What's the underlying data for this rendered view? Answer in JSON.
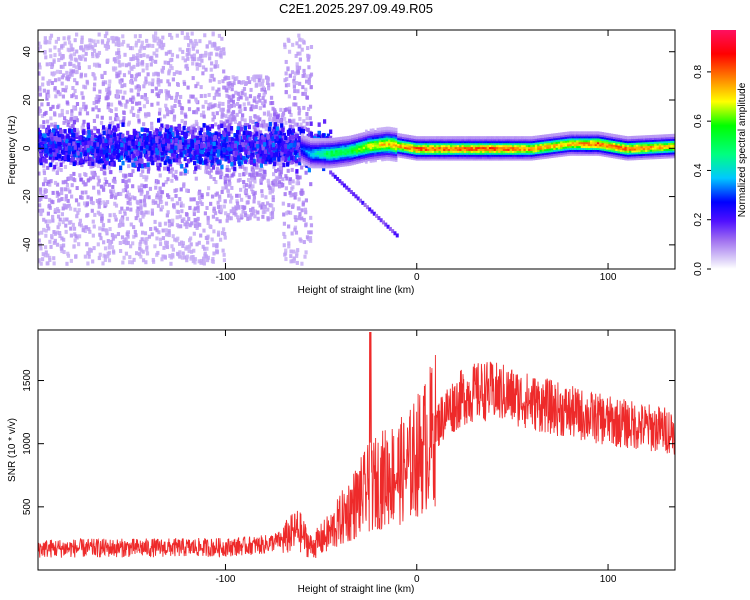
{
  "figure": {
    "title": "C2E1.2025.297.09.49.R05"
  },
  "colors": {
    "snr_line": "#ee2a2a",
    "colormap": [
      "#dcd0f8",
      "#a070f0",
      "#5010ff",
      "#0000ff",
      "#00c8ff",
      "#00ff80",
      "#00ff00",
      "#ffff00",
      "#ff8000",
      "#ff0000",
      "#ff1060"
    ]
  },
  "chart_data": [
    {
      "type": "heatmap",
      "title": "C2E1.2025.297.09.49.R05",
      "xlabel": "Height of straight line (km)",
      "ylabel": "Frequency (Hz)",
      "xlim": [
        -198,
        135
      ],
      "ylim": [
        -50,
        49
      ],
      "xticks": [
        -100,
        0,
        100
      ],
      "xtick_labels": [
        "-100",
        "0",
        "100"
      ],
      "yticks": [
        -40,
        -20,
        0,
        20,
        40
      ],
      "ytick_labels": [
        "-40",
        "-20",
        "0",
        "20",
        "40"
      ],
      "colorbar": {
        "label": "Normalized spectral amplitude",
        "range": [
          0,
          0.97
        ],
        "ticks": [
          0.0,
          0.2,
          0.4,
          0.6,
          0.8
        ],
        "tick_labels": [
          "0.0",
          "0.2",
          "0.4",
          "0.6",
          "0.8"
        ]
      },
      "ridge": {
        "description": "dominant frequency ridge (x km, Hz, amplitude)",
        "points": [
          {
            "x": -198,
            "f": 2,
            "a": 0.15
          },
          {
            "x": -160,
            "f": 1,
            "a": 0.18
          },
          {
            "x": -120,
            "f": 2,
            "a": 0.16
          },
          {
            "x": -90,
            "f": 3,
            "a": 0.2
          },
          {
            "x": -75,
            "f": 1,
            "a": 0.3
          },
          {
            "x": -65,
            "f": 2,
            "a": 0.25
          },
          {
            "x": -55,
            "f": -2,
            "a": 0.45
          },
          {
            "x": -45,
            "f": -2,
            "a": 0.6
          },
          {
            "x": -35,
            "f": -1,
            "a": 0.6
          },
          {
            "x": -25,
            "f": 1,
            "a": 0.75
          },
          {
            "x": -15,
            "f": 2,
            "a": 0.8
          },
          {
            "x": 0,
            "f": 0,
            "a": 0.9
          },
          {
            "x": 20,
            "f": 0,
            "a": 0.88
          },
          {
            "x": 40,
            "f": 0,
            "a": 0.92
          },
          {
            "x": 60,
            "f": 0,
            "a": 0.85
          },
          {
            "x": 80,
            "f": 2,
            "a": 0.82
          },
          {
            "x": 95,
            "f": 2,
            "a": 0.9
          },
          {
            "x": 110,
            "f": 0,
            "a": 0.88
          },
          {
            "x": 135,
            "f": 1,
            "a": 0.8
          }
        ]
      }
    },
    {
      "type": "line",
      "xlabel": "Height of straight line (km)",
      "ylabel": "SNR (10 * v/v)",
      "xlim": [
        -198,
        135
      ],
      "ylim": [
        0,
        1900
      ],
      "xticks": [
        -100,
        0,
        100
      ],
      "xtick_labels": [
        "-100",
        "0",
        "100"
      ],
      "yticks": [
        500,
        1000,
        1500
      ],
      "ytick_labels": [
        "500",
        "1000",
        "1500"
      ],
      "envelope": {
        "description": "approximate mean SNR trend vs height (km, SNR), high-frequency noise added",
        "x": [
          -198,
          -150,
          -100,
          -80,
          -70,
          -62,
          -55,
          -45,
          -35,
          -25,
          -15,
          -5,
          5,
          15,
          25,
          35,
          45,
          60,
          80,
          100,
          120,
          135
        ],
        "mean": [
          170,
          175,
          180,
          200,
          240,
          320,
          180,
          300,
          480,
          650,
          750,
          800,
          1000,
          1250,
          1380,
          1420,
          1400,
          1330,
          1250,
          1180,
          1130,
          1100
        ]
      }
    }
  ]
}
